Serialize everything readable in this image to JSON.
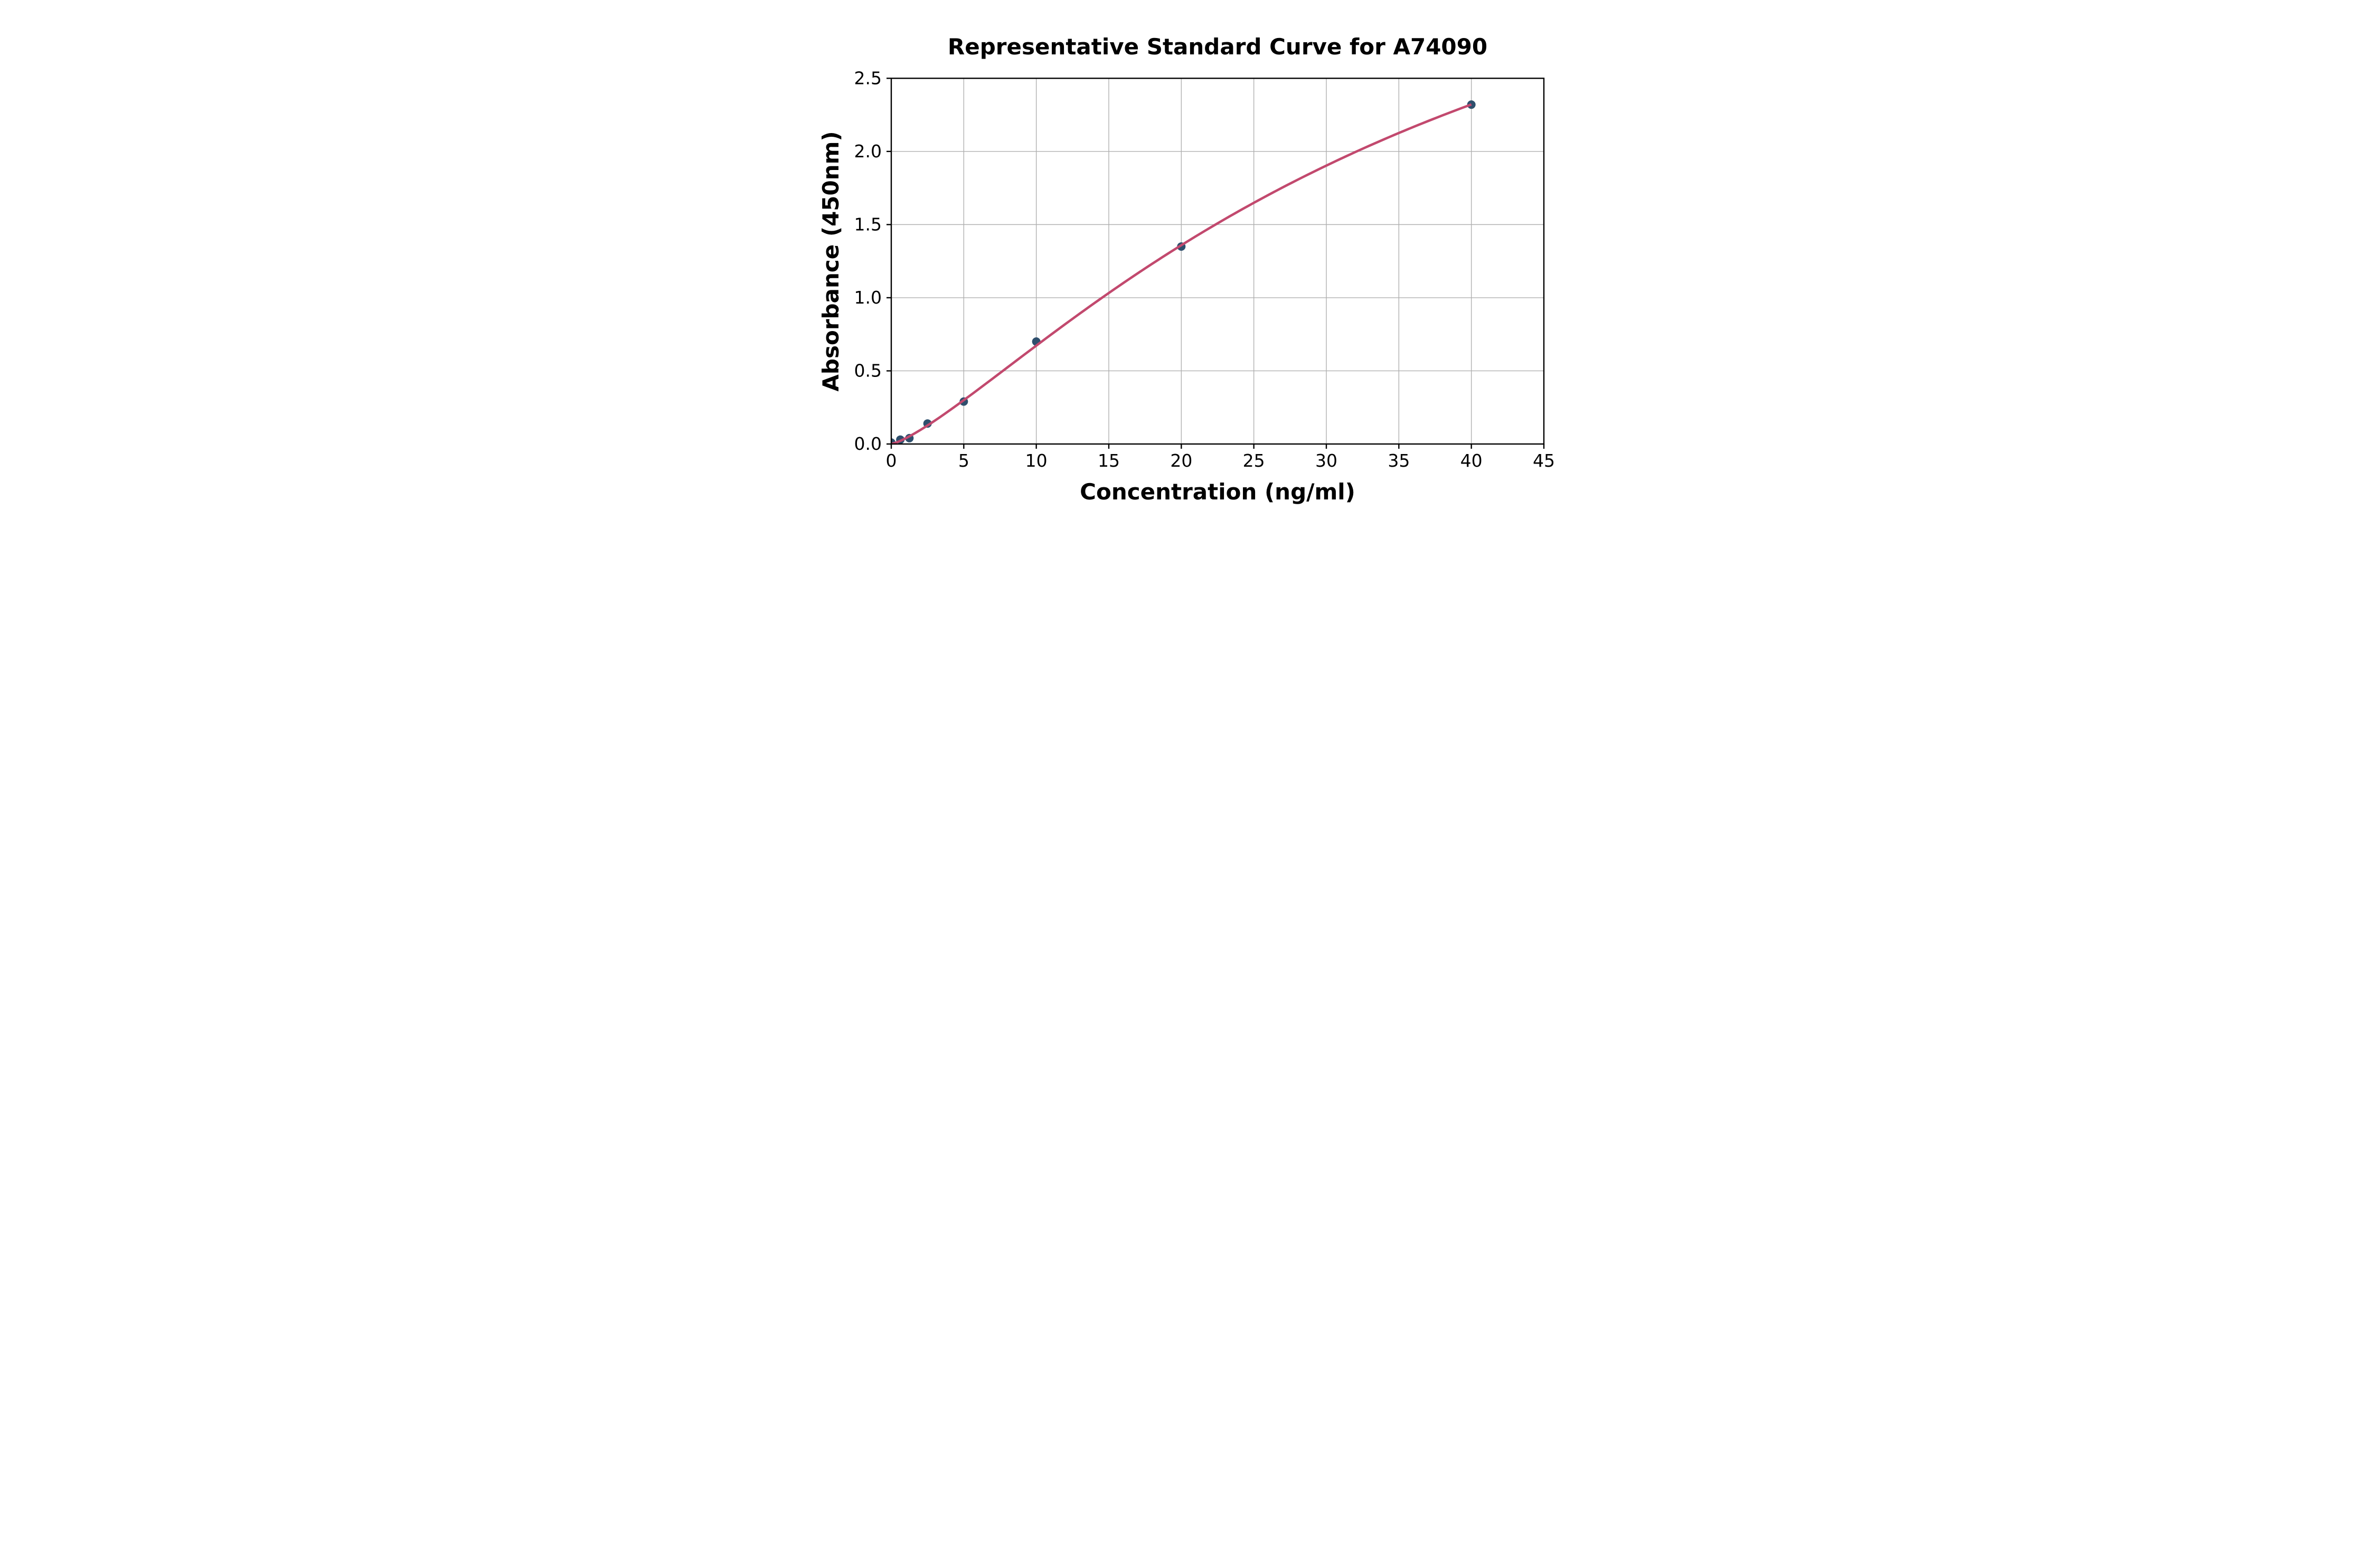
{
  "figure": {
    "background": "#ffffff"
  },
  "chart_data": {
    "type": "scatter",
    "title": "Representative Standard Curve for A74090",
    "xlabel": "Concentration (ng/ml)",
    "ylabel": "Absorbance (450nm)",
    "x": [
      0,
      0.625,
      1.25,
      2.5,
      5,
      10,
      20,
      40
    ],
    "y": [
      0.01,
      0.03,
      0.04,
      0.14,
      0.29,
      0.7,
      1.35,
      2.32
    ],
    "xlim": [
      0,
      45
    ],
    "ylim": [
      0,
      2.5
    ],
    "xticks": [
      0,
      5,
      10,
      15,
      20,
      25,
      30,
      35,
      40,
      45
    ],
    "xtick_labels": [
      "0",
      "5",
      "10",
      "15",
      "20",
      "25",
      "30",
      "35",
      "40",
      "45"
    ],
    "yticks": [
      0,
      0.5,
      1.0,
      1.5,
      2.0,
      2.5
    ],
    "ytick_labels": [
      "0.0",
      "0.5",
      "1.0",
      "1.5",
      "2.0",
      "2.5"
    ],
    "grid": true,
    "legend": null,
    "fit_curve": {
      "type": "4pl",
      "a": 0,
      "d": 4.5,
      "c": 38.1,
      "b": 1.3,
      "x_min": 0,
      "x_max": 40
    },
    "colors": {
      "marker": "#2e4f6d",
      "line": "#c2496e",
      "grid": "#b0b0b0",
      "spine": "#000000",
      "background": "#ffffff"
    }
  }
}
